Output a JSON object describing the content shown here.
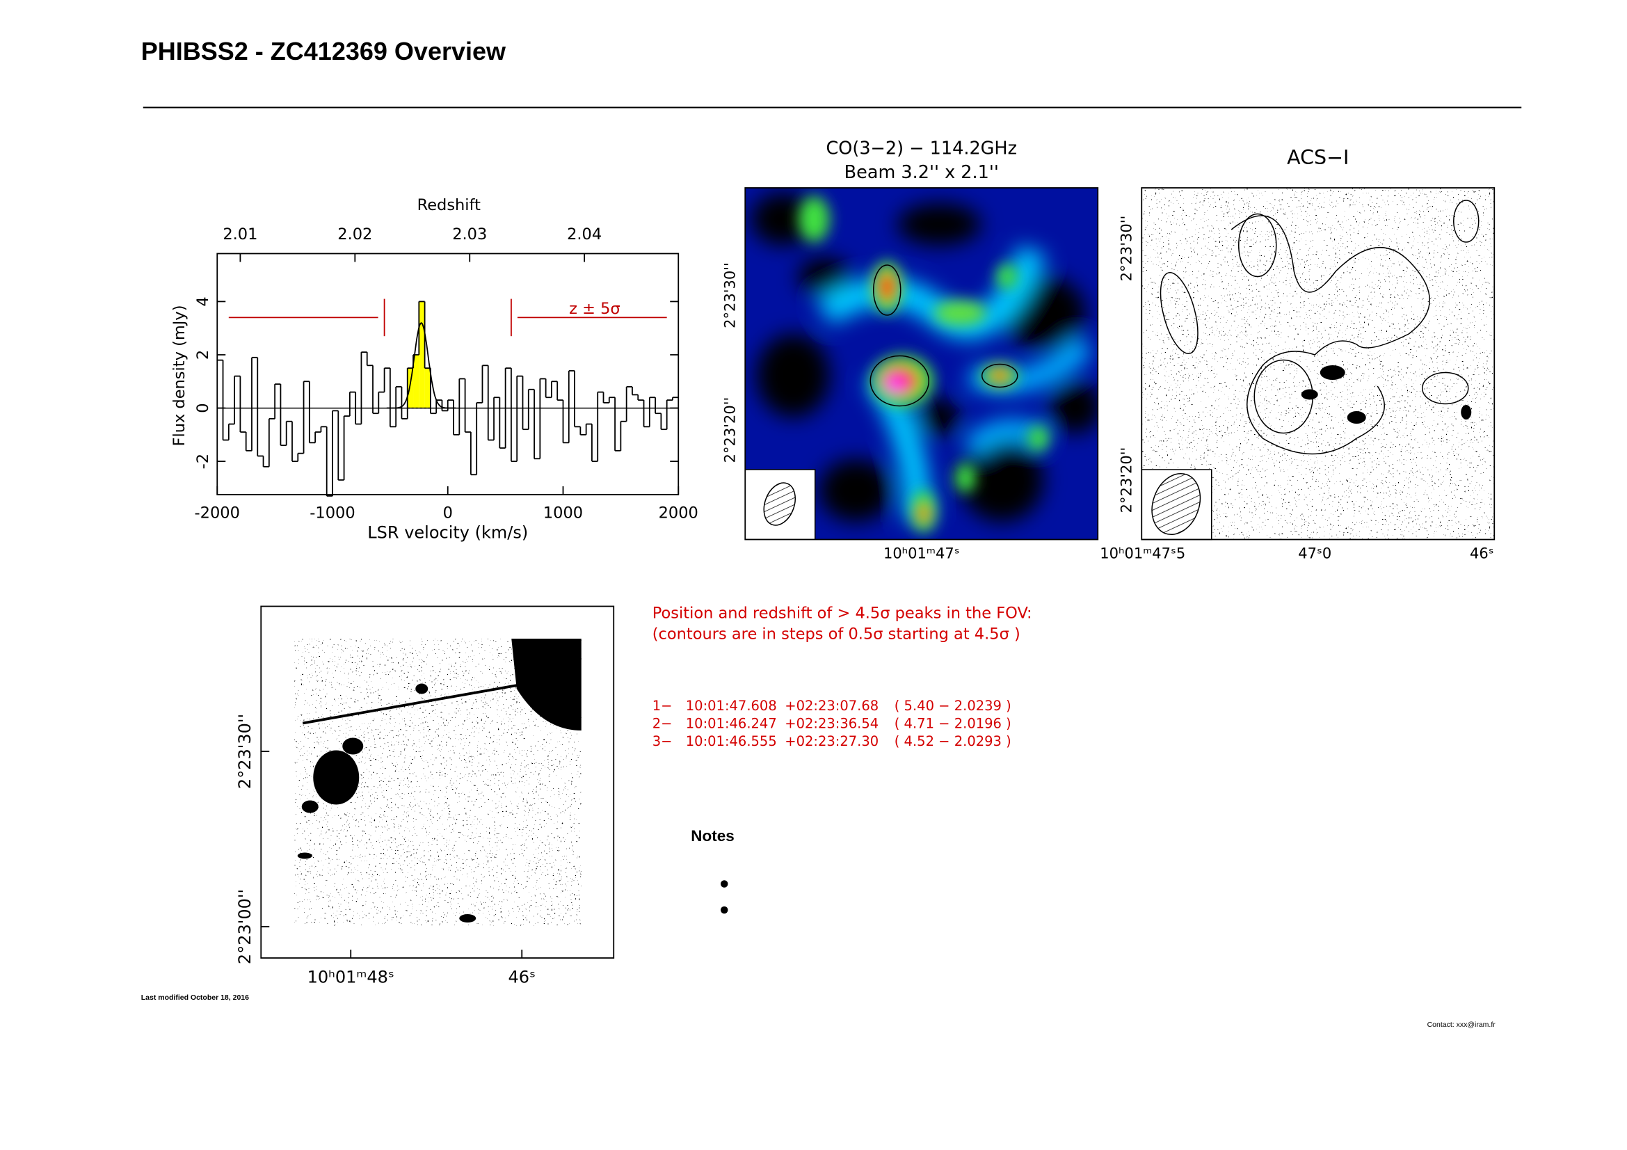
{
  "header": {
    "title": "PHIBSS2 - ZC412369 Overview"
  },
  "chart_data": {
    "type": "histogram",
    "x2_label": "Redshift",
    "xlabel": "LSR velocity (km/s)",
    "ylabel": "Flux density (mJy)",
    "color": "#000000",
    "bins": [
      -2000,
      -1950,
      -1900,
      -1850,
      -1800,
      -1750,
      -1700,
      -1650,
      -1600,
      -1550,
      -1500,
      -1450,
      -1400,
      -1350,
      -1300,
      -1250,
      -1200,
      -1150,
      -1100,
      -1050,
      -1000,
      -950,
      -900,
      -850,
      -800,
      -750,
      -700,
      -650,
      -600,
      -550,
      -500,
      -450,
      -400,
      -350,
      -300,
      -250,
      -200,
      -150,
      -100,
      -50,
      0,
      50,
      100,
      150,
      200,
      250,
      300,
      350,
      400,
      450,
      500,
      550,
      600,
      650,
      700,
      750,
      800,
      850,
      900,
      950,
      1000,
      1050,
      1100,
      1150,
      1200,
      1250,
      1300,
      1350,
      1400,
      1450,
      1500,
      1550,
      1600,
      1650,
      1700,
      1750,
      1800,
      1850,
      1900,
      1950,
      2000
    ],
    "values": [
      1.8,
      -1.2,
      -0.6,
      1.2,
      -0.9,
      -1.6,
      1.9,
      -1.8,
      -2.2,
      -0.4,
      0.9,
      -1.4,
      -0.5,
      -2.0,
      -1.7,
      1.0,
      -1.3,
      -0.9,
      -0.7,
      -3.3,
      -0.1,
      -2.7,
      -0.3,
      0.6,
      -0.6,
      2.1,
      1.6,
      -0.2,
      0.6,
      1.5,
      -0.7,
      0.8,
      -0.4,
      1.5,
      2.0,
      4.0,
      1.5,
      -0.2,
      0.3,
      -0.1,
      0.3,
      -1.0,
      1.1,
      -0.9,
      -2.5,
      0.2,
      1.6,
      -1.2,
      0.4,
      -1.5,
      1.5,
      -2.0,
      1.2,
      -0.8,
      0.7,
      -1.9,
      1.1,
      0.4,
      1.0,
      0.3,
      -1.3,
      1.4,
      -0.7,
      -1.0,
      -0.6,
      -2.0,
      0.6,
      0.2,
      0.4,
      -1.6,
      -0.5,
      0.8,
      0.5,
      0.3,
      -0.7,
      0.4,
      -0.2,
      -0.8,
      0.3,
      0.4
    ],
    "xlim": [
      -2000,
      2000
    ],
    "xticks": [
      -2000,
      -1000,
      0,
      1000,
      2000
    ],
    "x2ticks": [
      {
        "value": -1800,
        "label": "2.01"
      },
      {
        "value": -805,
        "label": "2.02"
      },
      {
        "value": 190,
        "label": "2.03"
      },
      {
        "value": 1185,
        "label": "2.04"
      }
    ],
    "ylim": [
      -3.25,
      5.8
    ],
    "yticks": [
      -2,
      0,
      2,
      4
    ],
    "highlight": {
      "range": [
        -350,
        -150
      ],
      "color": "#ffff00"
    },
    "fit": {
      "center": -230,
      "amplitude": 3.2,
      "sigma": 60
    },
    "window": {
      "range": [
        -550,
        550
      ],
      "extent": [
        -1900,
        1900
      ],
      "level": 3.4,
      "tick_range": [
        2.7,
        4.1
      ],
      "color": "#c00000"
    },
    "annotation": "z ± 5σ"
  },
  "co_map": {
    "title": "CO(3−2) − 114.2GHz",
    "beam": "Beam 3.2'' x 2.1''",
    "dec_labels": [
      "2°23'30''",
      "2°23'20''"
    ],
    "ra_labels": [
      "10ʰ01ᵐ47ˢ"
    ]
  },
  "acs_map": {
    "title": "ACS−I",
    "dec_labels": [
      "2°23'30''",
      "2°23'20''"
    ],
    "ra_labels": [
      "10ʰ01ᵐ47ˢ5",
      "47ˢ0",
      "46ˢ"
    ]
  },
  "field_map": {
    "dec_labels": [
      "2°23'30''",
      "2°23'00''"
    ],
    "ra_labels": [
      "10ʰ01ᵐ48ˢ",
      "46ˢ"
    ]
  },
  "peaks": {
    "heading": [
      "Position and redshift of > 4.5σ peaks in the FOV:",
      "(contours are in steps of 0.5σ starting at 4.5σ )"
    ],
    "rows": [
      [
        "1−",
        "10:01:47.608",
        "+02:23:07.68",
        "( 5.40 − 2.0239 )"
      ],
      [
        "2−",
        "10:01:46.247",
        "+02:23:36.54",
        "( 4.71 − 2.0196 )"
      ],
      [
        "3−",
        "10:01:46.555",
        "+02:23:27.30",
        "( 4.52 − 2.0293 )"
      ]
    ]
  },
  "notes": {
    "title": "Notes"
  },
  "footer": {
    "modified": "Last modified October 18, 2016",
    "contact": "Contact: xxx@iram.fr"
  }
}
